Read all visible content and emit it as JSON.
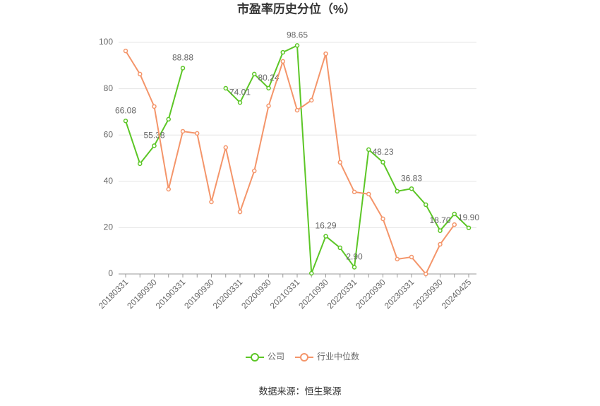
{
  "chart_data": {
    "type": "line",
    "title": "市盈率历史分位（%）",
    "source": "数据来源：恒生聚源",
    "categories": [
      "20180331",
      null,
      "20180930",
      null,
      "20190331",
      null,
      "20190930",
      null,
      "20200331",
      null,
      "20200930",
      null,
      "20210331",
      null,
      "20210930",
      null,
      "20220331",
      null,
      "20220930",
      null,
      "20230331",
      null,
      "20230930",
      null,
      "20240425"
    ],
    "series": [
      {
        "name": "公司",
        "color": "#5cc626",
        "values": [
          66.08,
          47.6,
          55.38,
          66.8,
          88.88,
          null,
          null,
          80.2,
          74.01,
          86.3,
          80.24,
          95.7,
          98.65,
          0.3,
          16.29,
          11.3,
          2.9,
          53.7,
          48.23,
          35.7,
          36.83,
          29.9,
          18.7,
          25.9,
          19.9
        ],
        "value_labels": [
          "66.08",
          null,
          "55.38",
          null,
          "88.88",
          null,
          null,
          null,
          "74.01",
          null,
          "80.24",
          null,
          "98.65",
          null,
          "16.29",
          null,
          "2.90",
          null,
          "48.23",
          null,
          "36.83",
          null,
          "18.70",
          null,
          "19.90"
        ]
      },
      {
        "name": "行业中位数",
        "color": "#f4956a",
        "values": [
          96.3,
          86.3,
          72.3,
          36.6,
          61.6,
          60.7,
          31.1,
          54.6,
          26.8,
          44.5,
          72.6,
          91.8,
          70.7,
          75.0,
          95.1,
          48.2,
          35.4,
          34.5,
          23.8,
          6.4,
          7.3,
          0,
          12.8,
          21.3,
          null
        ]
      }
    ],
    "ylim": [
      0,
      100
    ],
    "yticks": [
      0,
      20,
      40,
      60,
      80,
      100
    ],
    "grid": true,
    "legend": "bottom"
  }
}
